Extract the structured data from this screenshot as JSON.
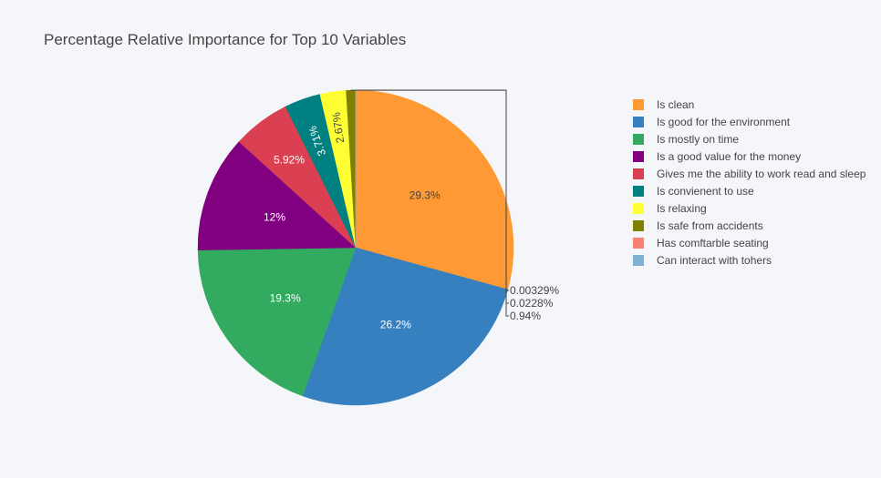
{
  "chart_data": {
    "type": "pie",
    "title": "Percentage Relative Importance for Top 10 Variables",
    "categories": [
      "Is clean",
      "Is good for the environment",
      "Is mostly on time",
      "Is a good value for the money",
      "Gives me the ability to work read and sleep",
      "Is convienent to use",
      "Is relaxing",
      "Is safe from accidents",
      "Has comftarble seating",
      "Can interact with tohers"
    ],
    "values": [
      29.3,
      26.2,
      19.3,
      12,
      5.92,
      3.71,
      2.67,
      0.94,
      0.0228,
      0.00329
    ],
    "labels": [
      "29.3%",
      "26.2%",
      "19.3%",
      "12%",
      "5.92%",
      "3.71%",
      "2.67%",
      "0.94%",
      "0.0228%",
      "0.00329%"
    ],
    "colors": [
      "#ff9933",
      "#3780bf",
      "#32ab60",
      "#800080",
      "#db4052",
      "#008080",
      "#ffff33",
      "#808000",
      "#fb8072",
      "#80b1d3"
    ],
    "label_colors": [
      "#444444",
      "#ffffff",
      "#ffffff",
      "#ffffff",
      "#ffffff",
      "#ffffff",
      "#444444",
      "#444444",
      "#444444",
      "#444444"
    ],
    "legend_position": "right",
    "direction": "clockwise",
    "start": "top"
  }
}
